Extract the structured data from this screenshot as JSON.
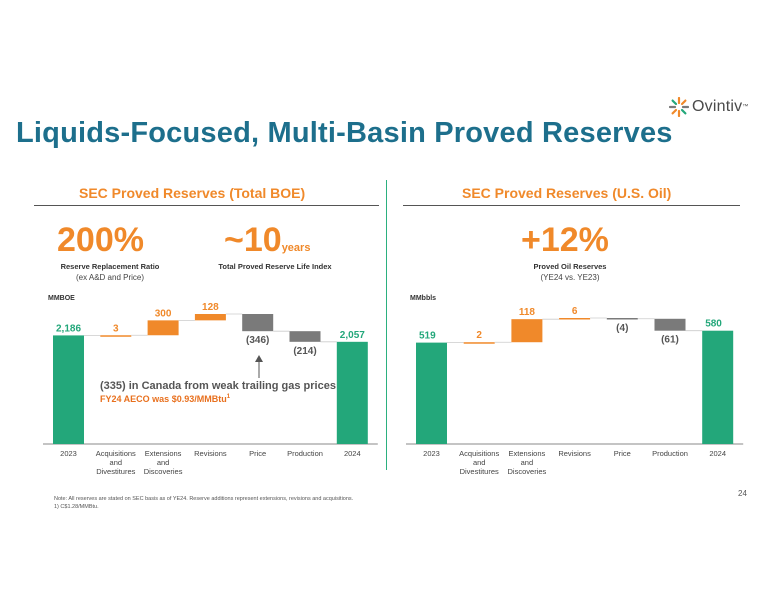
{
  "logo": {
    "name": "Ovintiv",
    "tm": "™"
  },
  "title": "Liquids-Focused, Multi-Basin Proved Reserves",
  "left_panel": {
    "title": "SEC Proved Reserves (Total BOE)",
    "kpi1": {
      "value": "200%",
      "label": "Reserve Replacement Ratio",
      "sub": "(ex A&D and Price)"
    },
    "kpi2": {
      "value": "~10",
      "unit": "years",
      "label": "Total Proved Reserve Life Index"
    },
    "callout": {
      "line1": "(335) in Canada from weak trailing gas prices",
      "line2": "FY24 AECO was $0.93/MMBtu",
      "sup": "1"
    }
  },
  "right_panel": {
    "title": "SEC Proved Reserves (U.S. Oil)",
    "kpi1": {
      "value": "+12%",
      "label": "Proved Oil Reserves",
      "sub": "(YE24 vs. YE23)"
    }
  },
  "colors": {
    "total": "#23a77a",
    "positive": "#f0892a",
    "negative": "#7a7a7a",
    "title": "#1d6f8c",
    "accent": "#f0892a"
  },
  "chart_data": [
    {
      "type": "bar",
      "subtype": "waterfall",
      "title": "SEC Proved Reserves (Total BOE)",
      "ylabel": "MMBOE",
      "categories": [
        "2023",
        "Acquisitions and Divestitures",
        "Extensions and Discoveries",
        "Revisions",
        "Price",
        "Production",
        "2024"
      ],
      "category_lines": [
        [
          "2023"
        ],
        [
          "Acquisitions",
          "and",
          "Divestitures"
        ],
        [
          "Extensions",
          "and",
          "Discoveries"
        ],
        [
          "Revisions"
        ],
        [
          "Price"
        ],
        [
          "Production"
        ],
        [
          "2024"
        ]
      ],
      "values": [
        2186,
        3,
        300,
        128,
        -346,
        -214,
        2057
      ],
      "labels": [
        "2,186",
        "3",
        "300",
        "128",
        "(346)",
        "(214)",
        "2,057"
      ],
      "kinds": [
        "total",
        "pos",
        "pos",
        "pos",
        "neg",
        "neg",
        "total"
      ]
    },
    {
      "type": "bar",
      "subtype": "waterfall",
      "title": "SEC Proved Reserves (U.S. Oil)",
      "ylabel": "MMbbls",
      "categories": [
        "2023",
        "Acquisitions and Divestitures",
        "Extensions and Discoveries",
        "Revisions",
        "Price",
        "Production",
        "2024"
      ],
      "category_lines": [
        [
          "2023"
        ],
        [
          "Acquisitions",
          "and",
          "Divestitures"
        ],
        [
          "Extensions",
          "and",
          "Discoveries"
        ],
        [
          "Revisions"
        ],
        [
          "Price"
        ],
        [
          "Production"
        ],
        [
          "2024"
        ]
      ],
      "values": [
        519,
        2,
        118,
        6,
        -4,
        -61,
        580
      ],
      "labels": [
        "519",
        "2",
        "118",
        "6",
        "(4)",
        "(61)",
        "580"
      ],
      "kinds": [
        "total",
        "pos",
        "pos",
        "pos",
        "neg",
        "neg",
        "total"
      ]
    }
  ],
  "footnote": {
    "line1": "Note: All reserves are stated on SEC basis as of YE24.  Reserve additions represent extensions, revisions and acquisitions.",
    "line2": "1) C$1.28/MMBtu."
  },
  "page_number": "24"
}
